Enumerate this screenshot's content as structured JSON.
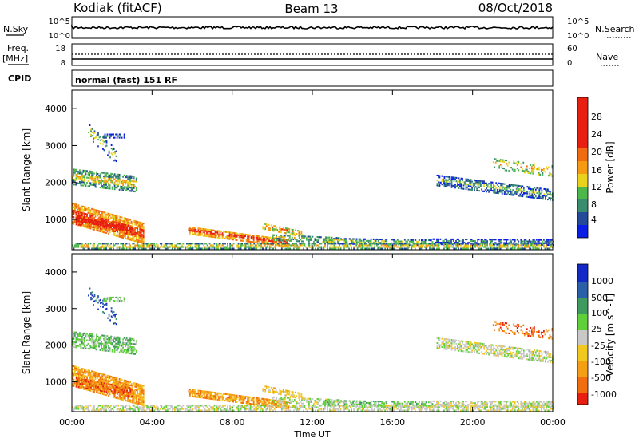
{
  "header": {
    "title": "Kodiak (fitACF)",
    "beam": "Beam 13",
    "date": "08/Oct/2018"
  },
  "status_panel": {
    "left_label": "N.Sky",
    "right_label": "N.Search",
    "left_ticks": [
      "10^5",
      "10^0"
    ],
    "right_ticks": [
      "10^5",
      "10^0"
    ]
  },
  "freq_panel": {
    "left_label_1": "Freq.",
    "left_label_2": "[MHz]",
    "right_label": "Nave",
    "left_ticks": [
      "18",
      "8"
    ],
    "right_ticks": [
      "60",
      "0"
    ]
  },
  "cpid": {
    "label": "CPID",
    "text": "normal (fast) 151 RF"
  },
  "chart_data": [
    {
      "type": "heatmap",
      "ylabel": "Slant Range [km]",
      "xlabel": "",
      "x_unit": "hours UT",
      "xlim": [
        0,
        24
      ],
      "ylim": [
        180,
        4500
      ],
      "y_ticks": [
        "1000",
        "2000",
        "3000",
        "4000"
      ],
      "x_ticks": [
        "00:00",
        "04:00",
        "08:00",
        "12:00",
        "16:00",
        "20:00",
        "00:00"
      ],
      "colorbar": {
        "label": "Power [dB]",
        "ticks": [
          "4",
          "8",
          "12",
          "16",
          "20",
          "24",
          "28"
        ],
        "colors": [
          "#0a1ee6",
          "#244a99",
          "#3a8c6e",
          "#4cb84a",
          "#e8d21c",
          "#f59a12",
          "#f06a10",
          "#e81e10"
        ]
      }
    },
    {
      "type": "heatmap",
      "ylabel": "Slant Range [km]",
      "xlabel": "Time UT",
      "x_unit": "hours UT",
      "xlim": [
        0,
        24
      ],
      "ylim": [
        180,
        4500
      ],
      "y_ticks": [
        "1000",
        "2000",
        "3000",
        "4000"
      ],
      "x_ticks": [
        "00:00",
        "04:00",
        "08:00",
        "12:00",
        "16:00",
        "20:00",
        "00:00"
      ],
      "colorbar": {
        "label": "Velocity [m s^-1]",
        "ticks": [
          "1000",
          "500",
          "100",
          "25",
          "-25",
          "-100",
          "-500",
          "-1000"
        ],
        "colors": [
          "#1428c8",
          "#2b5fa8",
          "#3f9a60",
          "#5fcf3a",
          "#c8c8c8",
          "#f0c81e",
          "#f5a014",
          "#f06e10",
          "#e81e10"
        ]
      }
    }
  ]
}
